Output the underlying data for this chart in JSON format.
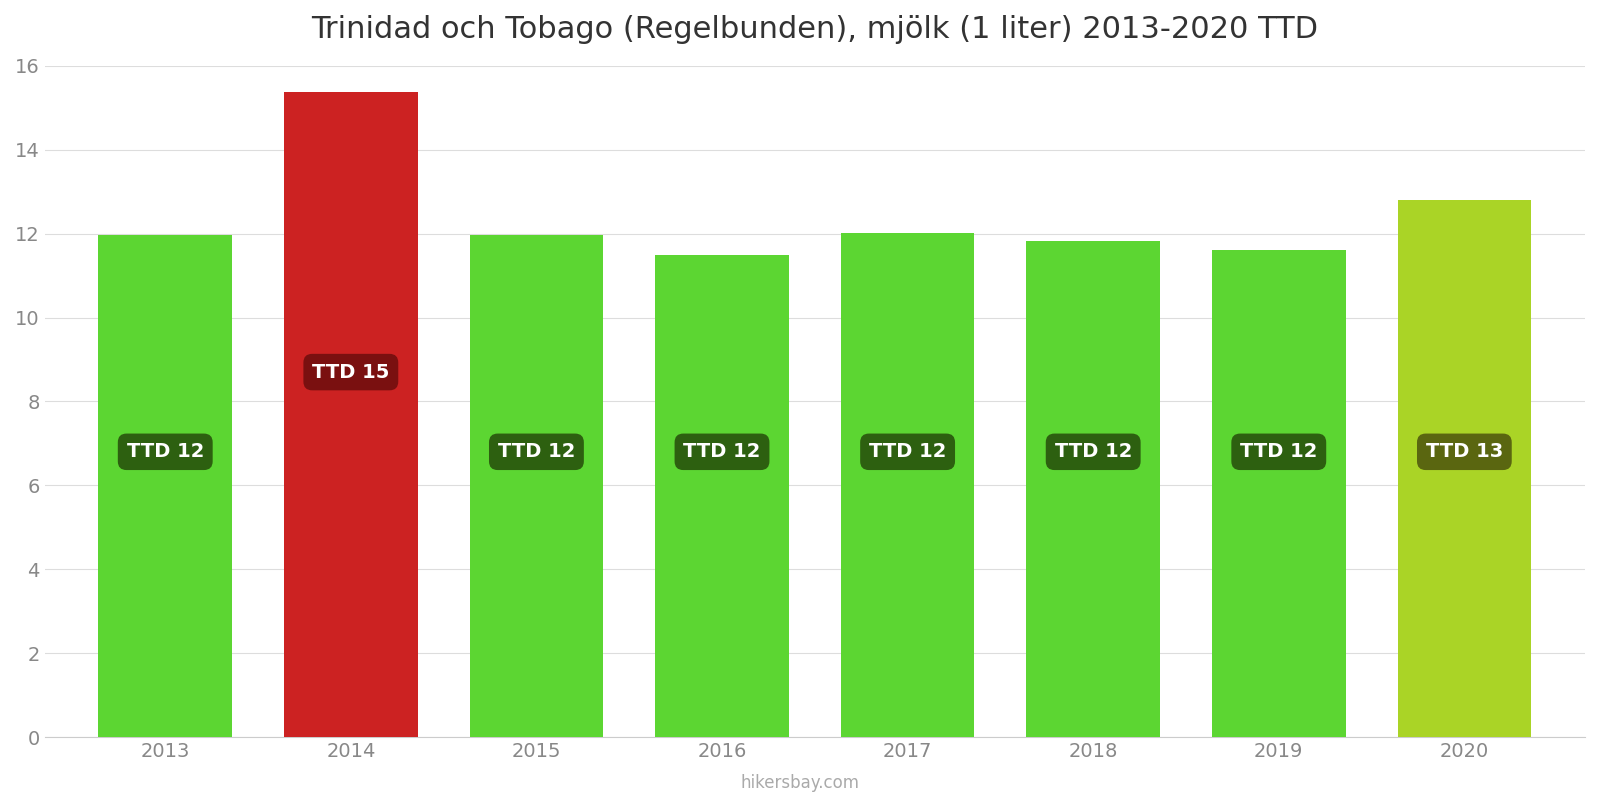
{
  "title": "Trinidad och Tobago (Regelbunden), mjölk (1 liter) 2013-2020 TTD",
  "years": [
    2013,
    2014,
    2015,
    2016,
    2017,
    2018,
    2019,
    2020
  ],
  "values": [
    11.97,
    15.38,
    11.97,
    11.49,
    12.01,
    11.83,
    11.62,
    12.79
  ],
  "bar_colors": [
    "#5cd632",
    "#cc2222",
    "#5cd632",
    "#5cd632",
    "#5cd632",
    "#5cd632",
    "#5cd632",
    "#aad426"
  ],
  "label_values": [
    12,
    15,
    12,
    12,
    12,
    12,
    12,
    13
  ],
  "label_bg_colors": [
    "#2d6010",
    "#7a1010",
    "#2d6010",
    "#2d6010",
    "#2d6010",
    "#2d6010",
    "#2d6010",
    "#5a6610"
  ],
  "label_y_positions": [
    6.8,
    8.7,
    6.8,
    6.8,
    6.8,
    6.8,
    6.8,
    6.8
  ],
  "ylim": [
    0,
    16
  ],
  "yticks": [
    0,
    2,
    4,
    6,
    8,
    10,
    12,
    14,
    16
  ],
  "footer": "hikersbay.com",
  "bg_color": "#ffffff",
  "title_fontsize": 22,
  "bar_width": 0.72
}
